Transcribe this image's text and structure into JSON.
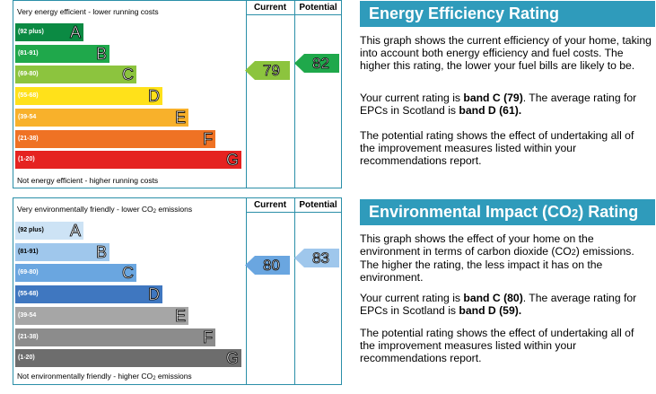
{
  "energy": {
    "header_current": "Current",
    "header_potential": "Potential",
    "top_caption": "Very energy efficient - lower running costs",
    "bottom_caption": "Not energy efficient - higher running costs",
    "bands": [
      {
        "range": "(92 plus)",
        "letter": "A",
        "color": "#0b8a43"
      },
      {
        "range": "(81-91)",
        "letter": "B",
        "color": "#1fa84b"
      },
      {
        "range": "(69-80)",
        "letter": "C",
        "color": "#8cc43e"
      },
      {
        "range": "(55-68)",
        "letter": "D",
        "color": "#ffe11a"
      },
      {
        "range": "(39-54",
        "letter": "E",
        "color": "#f8b12b"
      },
      {
        "range": "(21-38)",
        "letter": "F",
        "color": "#ef7224"
      },
      {
        "range": "(1-20)",
        "letter": "G",
        "color": "#e52321"
      }
    ],
    "current": {
      "value": "79",
      "color": "#8cc43e"
    },
    "potential": {
      "value": "82",
      "color": "#1fa84b"
    },
    "title": "Energy Efficiency Rating",
    "para1": "This graph shows the current efficiency of your home, taking into account both energy efficiency and fuel costs. The higher this rating, the lower your fuel bills are likely to be.",
    "para2_prefix": "Your current rating is ",
    "para2_band": "band C (79)",
    "para2_mid": ". The average rating for EPCs in Scotland is ",
    "para2_avg": "band D (61).",
    "para3": "The potential rating shows the effect of undertaking all of the improvement measures listed within your recommendations report."
  },
  "environment": {
    "header_current": "Current",
    "header_potential": "Potential",
    "top_caption_a": "Very environmentally friendly - lower CO",
    "top_caption_sub": "2",
    "top_caption_b": " emissions",
    "bottom_caption_a": "Not environmentally friendly - higher CO",
    "bottom_caption_sub": "2",
    "bottom_caption_b": " emissions",
    "bands": [
      {
        "range": "(92 plus)",
        "letter": "A",
        "color": "#cde3f5"
      },
      {
        "range": "(81-91)",
        "letter": "B",
        "color": "#9fc7ec"
      },
      {
        "range": "(69-80)",
        "letter": "C",
        "color": "#6aa6e0"
      },
      {
        "range": "(55-68)",
        "letter": "D",
        "color": "#3f77c0"
      },
      {
        "range": "(39-54",
        "letter": "E",
        "color": "#a6a6a6"
      },
      {
        "range": "(21-38)",
        "letter": "F",
        "color": "#8c8c8c"
      },
      {
        "range": "(1-20)",
        "letter": "G",
        "color": "#6d6d6d"
      }
    ],
    "current": {
      "value": "80",
      "color": "#6aa6e0"
    },
    "potential": {
      "value": "83",
      "color": "#9fc7ec"
    },
    "title_a": "Environmental Impact (CO",
    "title_sub": "2",
    "title_b": ") Rating",
    "para1_a": "This graph shows the effect of your home on the environment in terms of carbon dioxide (CO",
    "para1_sub": "2",
    "para1_b": ") emissions. The higher the rating, the less impact it has on the environment.",
    "para2_prefix": "Your current rating is ",
    "para2_band": "band C (80)",
    "para2_mid": ". The average rating for EPCs in Scotland is ",
    "para2_avg": "band D (59).",
    "para3": "The potential rating shows the effect of undertaking all of the improvement measures listed within your recommendations report."
  }
}
